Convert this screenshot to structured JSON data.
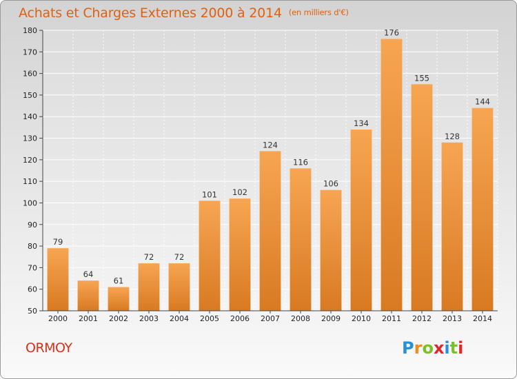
{
  "title": "Achats et Charges Externes 2000 à 2014",
  "unit_note": "(en milliers d'€)",
  "town": "ORMOY",
  "logo": {
    "letters": [
      "P",
      "r",
      "o",
      "x",
      "i",
      "t",
      "i"
    ],
    "colors": [
      "#2a8fd8",
      "#f08a1c",
      "#7bbf2a",
      "#e2262b",
      "#2a8fd8",
      "#7bbf2a",
      "#e2262b"
    ]
  },
  "colors": {
    "bar_light": "#f7a552",
    "bar_dark": "#d87a22",
    "title": "#e06010",
    "axis_text": "#222222"
  },
  "chart_data": {
    "type": "bar",
    "title": "Achats et Charges Externes 2000 à 2014",
    "subtitle": "(en milliers d'€)",
    "categories": [
      "2000",
      "2001",
      "2002",
      "2003",
      "2004",
      "2005",
      "2006",
      "2007",
      "2008",
      "2009",
      "2010",
      "2011",
      "2012",
      "2013",
      "2014"
    ],
    "values": [
      79,
      64,
      61,
      72,
      72,
      101,
      102,
      124,
      116,
      106,
      134,
      176,
      155,
      128,
      144
    ],
    "ylim": [
      50,
      180
    ],
    "yticks": [
      50,
      60,
      70,
      80,
      90,
      100,
      110,
      120,
      130,
      140,
      150,
      160,
      170,
      180
    ],
    "grid": true,
    "data_labels": true
  }
}
